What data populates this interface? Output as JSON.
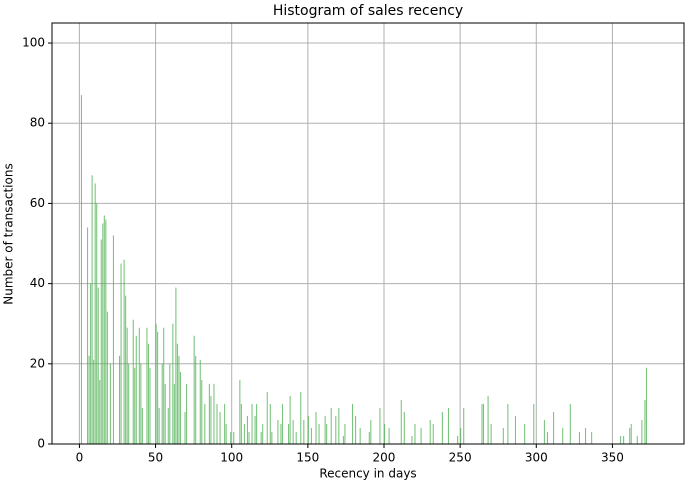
{
  "chart_data": {
    "type": "histogram",
    "title": "Histogram of sales recency",
    "x_label": "Recency in days",
    "y_label": "Number of transactions",
    "color": "#4caf50",
    "grid": true,
    "xlim": [
      -18,
      397
    ],
    "xticks": [
      0,
      50,
      100,
      150,
      200,
      250,
      300,
      350
    ],
    "ylim": [
      0,
      105
    ],
    "yticks": [
      0,
      20,
      40,
      60,
      80,
      100
    ],
    "bins": [
      0,
      1,
      2,
      3,
      4,
      5,
      6,
      7,
      8,
      9,
      10,
      11,
      12,
      13,
      14,
      15,
      16,
      17,
      18,
      19,
      20,
      21,
      22,
      23,
      24,
      25,
      26,
      27,
      28,
      29,
      30,
      31,
      32,
      33,
      34,
      35,
      36,
      37,
      38,
      39,
      40,
      41,
      42,
      43,
      44,
      45,
      46,
      47,
      48,
      49,
      50,
      51,
      52,
      53,
      54,
      55,
      56,
      57,
      58,
      59,
      60,
      61,
      62,
      63,
      64,
      65,
      66,
      67,
      68,
      69,
      70,
      71,
      72,
      73,
      74,
      75,
      76,
      77,
      78,
      79,
      80,
      81,
      82,
      83,
      84,
      85,
      86,
      87,
      88,
      89,
      90,
      91,
      92,
      93,
      94,
      95,
      96,
      97,
      98,
      99,
      100,
      101,
      102,
      103,
      104,
      105,
      106,
      107,
      108,
      109,
      110,
      111,
      112,
      113,
      114,
      115,
      116,
      117,
      118,
      119,
      120,
      121,
      122,
      123,
      124,
      125,
      126,
      127,
      128,
      129,
      130,
      131,
      132,
      133,
      134,
      135,
      136,
      137,
      138,
      139,
      140,
      141,
      142,
      143,
      144,
      145,
      146,
      147,
      148,
      149,
      150,
      151,
      152,
      153,
      154,
      155,
      156,
      157,
      158,
      159,
      160,
      161,
      162,
      163,
      164,
      165,
      166,
      167,
      168,
      169,
      170,
      171,
      172,
      173,
      174,
      175,
      176,
      177,
      178,
      179,
      180,
      181,
      182,
      183,
      184,
      185,
      186,
      187,
      188,
      189,
      190,
      191,
      192,
      193,
      194,
      195,
      196,
      197,
      198,
      199,
      200,
      201,
      202,
      203,
      204,
      205,
      206,
      207,
      208,
      209,
      210,
      211,
      212,
      213,
      214,
      215,
      216,
      217,
      218,
      219,
      220,
      221,
      222,
      223,
      224,
      225,
      226,
      227,
      228,
      229,
      230,
      231,
      232,
      233,
      234,
      235,
      236,
      237,
      238,
      239,
      240,
      241,
      242,
      243,
      244,
      245,
      246,
      247,
      248,
      249,
      250,
      251,
      252,
      253,
      254,
      255,
      256,
      257,
      258,
      259,
      260,
      261,
      262,
      263,
      264,
      265,
      266,
      267,
      268,
      269,
      270,
      271,
      272,
      273,
      274,
      275,
      276,
      277,
      278,
      279,
      280,
      281,
      282,
      283,
      284,
      285,
      286,
      287,
      288,
      289,
      290,
      291,
      292,
      293,
      294,
      295,
      296,
      297,
      298,
      299,
      300,
      301,
      302,
      303,
      304,
      305,
      306,
      307,
      308,
      309,
      310,
      311,
      312,
      313,
      314,
      315,
      316,
      317,
      318,
      319,
      320,
      321,
      322,
      323,
      324,
      325,
      326,
      327,
      328,
      329,
      330,
      331,
      332,
      333,
      334,
      335,
      336,
      337,
      338,
      339,
      340,
      341,
      342,
      343,
      344,
      345,
      346,
      347,
      348,
      349,
      350,
      351,
      352,
      353,
      354,
      355,
      356,
      357,
      358,
      359,
      360,
      361,
      362,
      363,
      364,
      365,
      366,
      367,
      368,
      369,
      370,
      371,
      372,
      373,
      374
    ],
    "values": [
      0,
      87,
      0,
      0,
      0,
      54,
      22,
      40,
      67,
      21,
      65,
      60,
      39,
      16,
      51,
      55,
      57,
      56,
      33,
      0,
      20,
      0,
      52,
      0,
      0,
      0,
      22,
      45,
      0,
      46,
      37,
      29,
      20,
      0,
      0,
      31,
      19,
      27,
      0,
      29,
      20,
      9,
      0,
      0,
      29,
      25,
      19,
      0,
      0,
      0,
      30,
      28,
      9,
      0,
      20,
      29,
      15,
      0,
      9,
      20,
      0,
      30,
      15,
      39,
      25,
      22,
      18,
      0,
      0,
      8,
      15,
      0,
      0,
      0,
      0,
      27,
      22,
      0,
      0,
      21,
      16,
      0,
      10,
      0,
      0,
      15,
      12,
      0,
      15,
      0,
      10,
      0,
      8,
      0,
      0,
      10,
      5,
      0,
      0,
      3,
      0,
      3,
      0,
      0,
      0,
      16,
      10,
      0,
      5,
      0,
      7,
      3,
      0,
      10,
      0,
      7,
      10,
      0,
      0,
      3,
      5,
      0,
      0,
      13,
      0,
      10,
      3,
      0,
      0,
      0,
      6,
      0,
      5,
      10,
      0,
      0,
      0,
      5,
      12,
      0,
      6,
      0,
      3,
      0,
      0,
      13,
      0,
      6,
      0,
      0,
      7,
      0,
      4,
      0,
      0,
      8,
      0,
      5,
      0,
      0,
      0,
      7,
      5,
      0,
      0,
      9,
      0,
      0,
      7,
      0,
      9,
      0,
      0,
      2,
      5,
      0,
      0,
      0,
      0,
      10,
      0,
      7,
      0,
      0,
      4,
      0,
      0,
      0,
      0,
      0,
      3,
      6,
      0,
      0,
      0,
      0,
      0,
      9,
      0,
      0,
      5,
      0,
      0,
      4,
      0,
      0,
      0,
      0,
      0,
      0,
      0,
      11,
      0,
      8,
      0,
      0,
      0,
      0,
      2,
      0,
      5,
      0,
      0,
      0,
      4,
      0,
      0,
      0,
      0,
      0,
      6,
      0,
      5,
      0,
      0,
      0,
      0,
      0,
      8,
      0,
      0,
      0,
      9,
      0,
      0,
      0,
      0,
      0,
      2,
      0,
      4,
      0,
      9,
      0,
      0,
      0,
      0,
      0,
      0,
      0,
      0,
      0,
      0,
      0,
      10,
      10,
      0,
      0,
      12,
      0,
      5,
      0,
      0,
      0,
      0,
      0,
      0,
      0,
      4,
      0,
      0,
      10,
      0,
      0,
      0,
      0,
      7,
      0,
      0,
      0,
      0,
      0,
      5,
      0,
      0,
      0,
      0,
      0,
      10,
      0,
      0,
      0,
      0,
      0,
      0,
      6,
      0,
      3,
      0,
      0,
      0,
      8,
      0,
      0,
      0,
      0,
      0,
      4,
      0,
      0,
      0,
      0,
      10,
      0,
      0,
      0,
      0,
      0,
      3,
      0,
      0,
      0,
      4,
      0,
      0,
      0,
      3,
      0,
      0,
      0,
      0,
      0,
      0,
      0,
      0,
      0,
      0,
      0,
      0,
      0,
      0,
      0,
      0,
      0,
      0,
      2,
      0,
      2,
      0,
      0,
      0,
      4,
      5,
      0,
      0,
      0,
      2,
      0,
      0,
      6,
      0,
      11,
      19,
      0
    ]
  }
}
